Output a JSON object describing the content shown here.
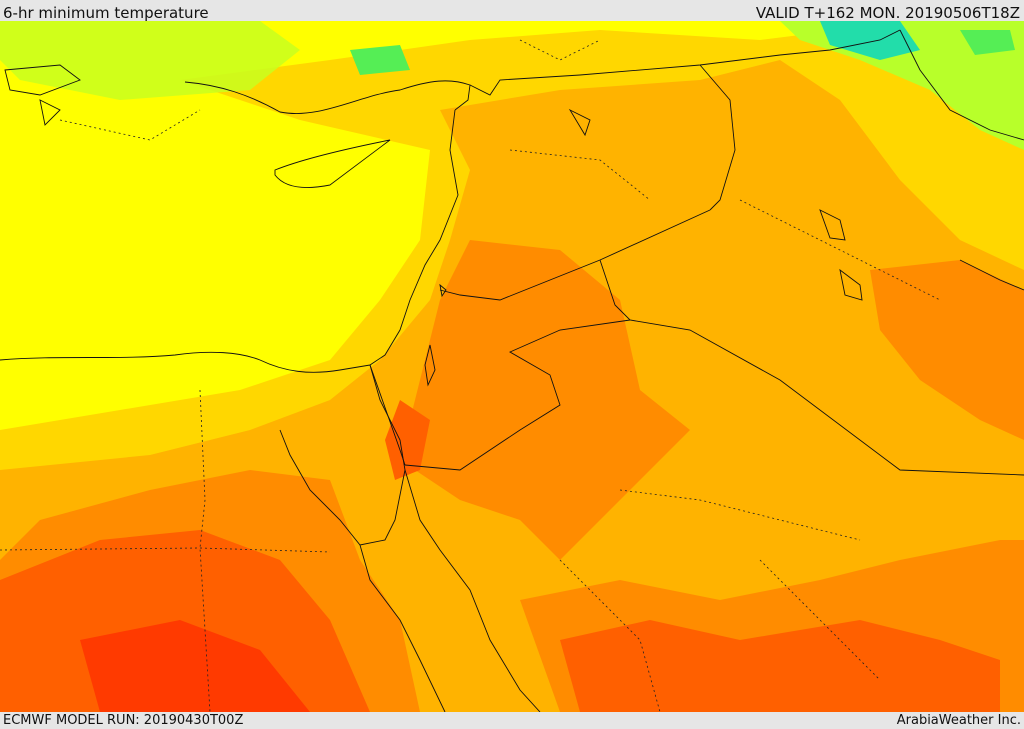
{
  "header": {
    "title": "6-hr minimum temperature",
    "valid": "VALID T+162 MON. 20190506T18Z"
  },
  "footer": {
    "model_run": "ECMWF MODEL RUN: 20190430T00Z",
    "credit": "ArabiaWeather Inc."
  },
  "colors": {
    "yellow": "#ffff00",
    "gold": "#ffd700",
    "amber": "#ffb300",
    "orange": "#ff8c00",
    "orange_red": "#ff6000",
    "red": "#ff3a00",
    "lime": "#b8ff2a",
    "green": "#55ee55",
    "teal": "#22ddaa",
    "border": "#111111"
  }
}
